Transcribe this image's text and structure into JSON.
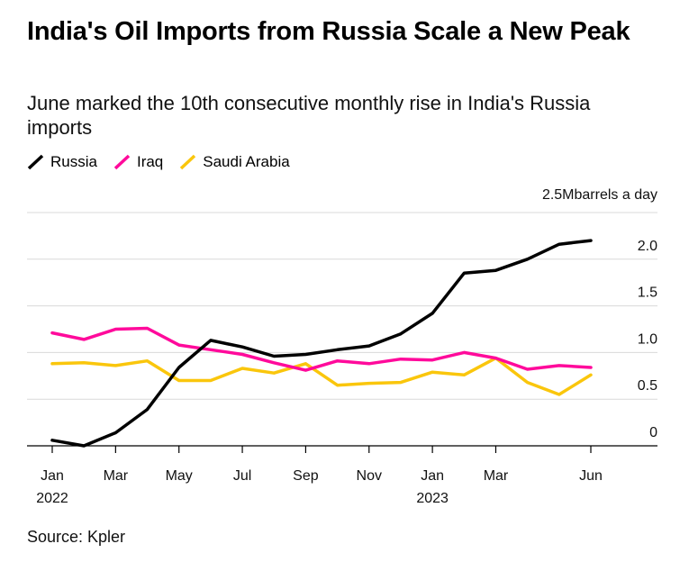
{
  "title": "India's Oil Imports from Russia Scale a New Peak",
  "subtitle": "June marked the 10th consecutive monthly rise in India's Russia imports",
  "source": "Source: Kpler",
  "colors": {
    "Russia": "#000000",
    "Iraq": "#ff0a9b",
    "Saudi Arabia": "#fac60c",
    "grid": "#d9d9d9"
  },
  "chart_data": {
    "type": "line",
    "title": "India's Oil Imports from Russia Scale a New Peak",
    "ylabel": "barrels a day",
    "unit_label": "2.5Mbarrels a day",
    "ylim": [
      0,
      2.5
    ],
    "y_ticks": [
      0,
      0.5,
      1.0,
      1.5,
      2.0,
      2.5
    ],
    "y_tick_labels": [
      "0",
      "0.5",
      "1.0",
      "1.5",
      "2.0",
      "2.5M"
    ],
    "x": [
      "Jan 2022",
      "Feb 2022",
      "Mar 2022",
      "Apr 2022",
      "May 2022",
      "Jun 2022",
      "Jul 2022",
      "Aug 2022",
      "Sep 2022",
      "Oct 2022",
      "Nov 2022",
      "Dec 2022",
      "Jan 2023",
      "Feb 2023",
      "Mar 2023",
      "Apr 2023",
      "May 2023",
      "Jun 2023"
    ],
    "x_tick_labels": [
      {
        "index": 0,
        "label": "Jan",
        "year": "2022"
      },
      {
        "index": 2,
        "label": "Mar",
        "year": ""
      },
      {
        "index": 4,
        "label": "May",
        "year": ""
      },
      {
        "index": 6,
        "label": "Jul",
        "year": ""
      },
      {
        "index": 8,
        "label": "Sep",
        "year": ""
      },
      {
        "index": 10,
        "label": "Nov",
        "year": ""
      },
      {
        "index": 12,
        "label": "Jan",
        "year": "2023"
      },
      {
        "index": 14,
        "label": "Mar",
        "year": ""
      },
      {
        "index": 17,
        "label": "Jun",
        "year": ""
      }
    ],
    "series": [
      {
        "name": "Russia",
        "values": [
          0.06,
          0.0,
          0.14,
          0.39,
          0.84,
          1.13,
          1.06,
          0.96,
          0.98,
          1.03,
          1.07,
          1.2,
          1.42,
          1.85,
          1.88,
          2.0,
          2.16,
          2.2
        ]
      },
      {
        "name": "Iraq",
        "values": [
          1.21,
          1.14,
          1.25,
          1.26,
          1.08,
          1.03,
          0.98,
          0.89,
          0.81,
          0.91,
          0.88,
          0.93,
          0.92,
          1.0,
          0.94,
          0.82,
          0.86,
          0.84
        ]
      },
      {
        "name": "Saudi Arabia",
        "values": [
          0.88,
          0.89,
          0.86,
          0.91,
          0.7,
          0.7,
          0.83,
          0.78,
          0.88,
          0.65,
          0.67,
          0.68,
          0.79,
          0.76,
          0.94,
          0.68,
          0.55,
          0.76
        ]
      }
    ]
  }
}
